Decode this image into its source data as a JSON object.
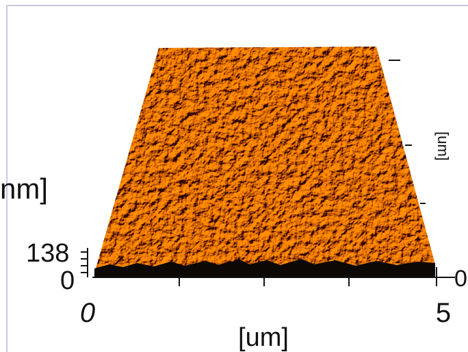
{
  "z_axis": {
    "label": "nm]",
    "ticks": [
      "138",
      "0"
    ]
  },
  "x_axis": {
    "label": "[um]",
    "ticks": [
      "0",
      "5"
    ]
  },
  "y_axis": {
    "label": "[um]",
    "ticks": [
      "0"
    ]
  }
}
